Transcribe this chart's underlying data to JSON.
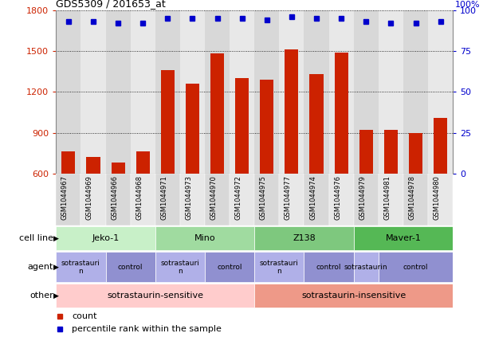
{
  "title": "GDS5309 / 201653_at",
  "samples": [
    "GSM1044967",
    "GSM1044969",
    "GSM1044966",
    "GSM1044968",
    "GSM1044971",
    "GSM1044973",
    "GSM1044970",
    "GSM1044972",
    "GSM1044975",
    "GSM1044977",
    "GSM1044974",
    "GSM1044976",
    "GSM1044979",
    "GSM1044981",
    "GSM1044978",
    "GSM1044980"
  ],
  "bar_values": [
    760,
    720,
    680,
    760,
    1360,
    1260,
    1480,
    1300,
    1290,
    1510,
    1330,
    1490,
    920,
    920,
    895,
    1010
  ],
  "dot_values_pct": [
    93,
    93,
    92,
    92,
    95,
    95,
    95,
    95,
    94,
    96,
    95,
    95,
    93,
    92,
    92,
    93
  ],
  "bar_color": "#cc2200",
  "dot_color": "#0000cc",
  "ylim_left": [
    600,
    1800
  ],
  "yticks_left": [
    600,
    900,
    1200,
    1500,
    1800
  ],
  "yticks_right": [
    0,
    25,
    50,
    75,
    100
  ],
  "ylim_right": [
    0,
    100
  ],
  "cell_line_groups": [
    {
      "label": "Jeko-1",
      "start": 0,
      "end": 4,
      "color": "#c8f0c8"
    },
    {
      "label": "Mino",
      "start": 4,
      "end": 8,
      "color": "#a0dba0"
    },
    {
      "label": "Z138",
      "start": 8,
      "end": 12,
      "color": "#7ec87e"
    },
    {
      "label": "Maver-1",
      "start": 12,
      "end": 16,
      "color": "#55b855"
    }
  ],
  "agent_groups": [
    {
      "label": "sotrastauri\nn",
      "start": 0,
      "end": 2,
      "color": "#b0b0e8"
    },
    {
      "label": "control",
      "start": 2,
      "end": 4,
      "color": "#9090d0"
    },
    {
      "label": "sotrastauri\nn",
      "start": 4,
      "end": 6,
      "color": "#b0b0e8"
    },
    {
      "label": "control",
      "start": 6,
      "end": 8,
      "color": "#9090d0"
    },
    {
      "label": "sotrastauri\nn",
      "start": 8,
      "end": 10,
      "color": "#b0b0e8"
    },
    {
      "label": "control",
      "start": 10,
      "end": 12,
      "color": "#9090d0"
    },
    {
      "label": "sotrastaurin",
      "start": 12,
      "end": 13,
      "color": "#b0b0e8"
    },
    {
      "label": "control",
      "start": 13,
      "end": 16,
      "color": "#9090d0"
    }
  ],
  "other_groups": [
    {
      "label": "sotrastaurin-sensitive",
      "start": 0,
      "end": 8,
      "color": "#ffcccc"
    },
    {
      "label": "sotrastaurin-insensitive",
      "start": 8,
      "end": 16,
      "color": "#ee9988"
    }
  ],
  "legend_count_color": "#cc2200",
  "legend_dot_color": "#0000cc",
  "legend_count_label": "count",
  "legend_dot_label": "percentile rank within the sample",
  "col_colors": [
    "#d8d8d8",
    "#e8e8e8"
  ]
}
